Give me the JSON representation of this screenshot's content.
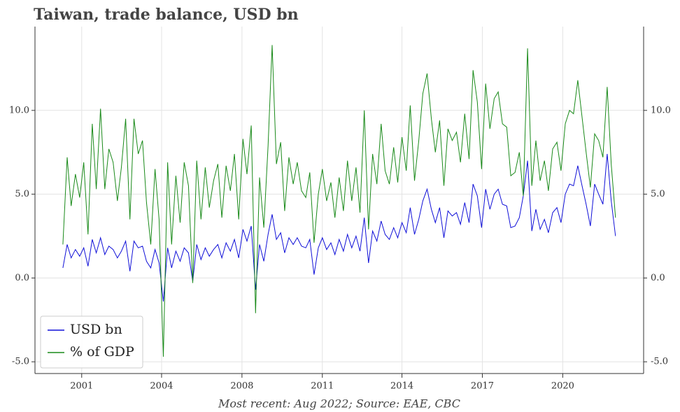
{
  "chart_data": {
    "type": "line",
    "title": "Taiwan, trade balance, USD bn",
    "footnote": "Most recent: Aug 2022; Source: EAE, CBC",
    "x": [
      2000.5,
      2000.67,
      2000.83,
      2001,
      2001.17,
      2001.33,
      2001.5,
      2001.67,
      2001.83,
      2002,
      2002.17,
      2002.33,
      2002.5,
      2002.67,
      2002.83,
      2003,
      2003.17,
      2003.33,
      2003.5,
      2003.67,
      2003.83,
      2004,
      2004.17,
      2004.33,
      2004.5,
      2004.67,
      2004.83,
      2005,
      2005.17,
      2005.33,
      2005.5,
      2005.67,
      2005.83,
      2006,
      2006.17,
      2006.33,
      2006.5,
      2006.67,
      2006.83,
      2007,
      2007.17,
      2007.33,
      2007.5,
      2007.67,
      2007.83,
      2008,
      2008.17,
      2008.33,
      2008.5,
      2008.67,
      2008.83,
      2009,
      2009.17,
      2009.33,
      2009.5,
      2009.67,
      2009.83,
      2010,
      2010.17,
      2010.33,
      2010.5,
      2010.67,
      2010.83,
      2011,
      2011.17,
      2011.33,
      2011.5,
      2011.67,
      2011.83,
      2012,
      2012.17,
      2012.33,
      2012.5,
      2012.67,
      2012.83,
      2013,
      2013.17,
      2013.33,
      2013.5,
      2013.67,
      2013.83,
      2014,
      2014.17,
      2014.33,
      2014.5,
      2014.67,
      2014.83,
      2015,
      2015.17,
      2015.33,
      2015.5,
      2015.67,
      2015.83,
      2016,
      2016.17,
      2016.33,
      2016.5,
      2016.67,
      2016.83,
      2017,
      2017.17,
      2017.33,
      2017.5,
      2017.67,
      2017.83,
      2018,
      2018.17,
      2018.33,
      2018.5,
      2018.67,
      2018.83,
      2019,
      2019.17,
      2019.33,
      2019.5,
      2019.67,
      2019.83,
      2020,
      2020.17,
      2020.33,
      2020.5,
      2020.67,
      2020.83,
      2021,
      2021.17,
      2021.33,
      2021.5,
      2021.67,
      2021.83,
      2022,
      2022.17,
      2022.33,
      2022.5
    ],
    "series": [
      {
        "name": "USD bn",
        "color": "#1010d8",
        "values": [
          0.6,
          2.0,
          1.2,
          1.7,
          1.3,
          1.8,
          0.7,
          2.3,
          1.5,
          2.4,
          1.4,
          1.9,
          1.7,
          1.2,
          1.6,
          2.2,
          0.4,
          2.2,
          1.8,
          1.9,
          1.0,
          0.6,
          1.7,
          0.9,
          -1.4,
          1.8,
          0.6,
          1.6,
          1.0,
          1.8,
          1.5,
          -0.2,
          2.0,
          1.1,
          1.8,
          1.3,
          1.7,
          2.0,
          1.2,
          2.1,
          1.6,
          2.3,
          1.2,
          2.9,
          2.2,
          3.1,
          -0.7,
          2.0,
          1.0,
          2.6,
          3.8,
          2.3,
          2.7,
          1.5,
          2.4,
          2.0,
          2.4,
          1.9,
          1.8,
          2.3,
          0.2,
          1.8,
          2.4,
          1.7,
          2.1,
          1.4,
          2.3,
          1.6,
          2.6,
          1.8,
          2.5,
          1.6,
          3.6,
          0.9,
          2.8,
          2.2,
          3.4,
          2.6,
          2.3,
          3.0,
          2.4,
          3.3,
          2.7,
          4.2,
          2.6,
          3.5,
          4.6,
          5.3,
          4.1,
          3.3,
          4.2,
          2.4,
          4.0,
          3.7,
          3.9,
          3.2,
          4.5,
          3.3,
          5.6,
          4.9,
          3.0,
          5.3,
          4.1,
          5.0,
          5.3,
          4.4,
          4.3,
          3.0,
          3.1,
          3.6,
          4.9,
          7.0,
          2.8,
          4.1,
          2.9,
          3.5,
          2.7,
          3.9,
          4.2,
          3.3,
          5.0,
          5.6,
          5.5,
          6.7,
          5.5,
          4.4,
          3.1,
          5.6,
          5.0,
          4.4,
          7.4,
          4.6,
          2.5
        ]
      },
      {
        "name": "% of GDP",
        "color": "#1a8a1a",
        "axis": "y2",
        "values": [
          2.0,
          7.2,
          4.3,
          6.2,
          4.8,
          6.9,
          2.6,
          9.2,
          5.3,
          10.1,
          5.3,
          7.7,
          6.9,
          4.6,
          6.6,
          9.5,
          3.5,
          9.5,
          7.4,
          8.2,
          4.5,
          2.0,
          6.5,
          3.5,
          -4.7,
          6.9,
          2.0,
          6.1,
          3.3,
          6.9,
          5.5,
          -0.3,
          7.0,
          3.5,
          6.6,
          4.2,
          5.8,
          6.8,
          3.6,
          6.7,
          5.2,
          7.4,
          3.5,
          8.3,
          6.2,
          9.1,
          -2.1,
          6.0,
          3.0,
          7.9,
          13.9,
          6.8,
          8.1,
          4.0,
          7.2,
          5.6,
          6.9,
          5.2,
          4.8,
          6.3,
          2.1,
          5.0,
          6.5,
          4.6,
          5.7,
          3.6,
          6.0,
          4.0,
          7.0,
          4.6,
          6.6,
          3.9,
          10.0,
          2.9,
          7.4,
          5.6,
          9.2,
          6.4,
          5.6,
          7.8,
          5.7,
          8.4,
          6.4,
          10.3,
          5.8,
          8.2,
          11.0,
          12.2,
          9.5,
          7.5,
          9.4,
          5.5,
          8.9,
          8.2,
          8.7,
          6.9,
          9.8,
          7.1,
          12.4,
          10.5,
          6.5,
          11.6,
          8.9,
          10.7,
          11.1,
          9.2,
          9.0,
          6.1,
          6.3,
          7.5,
          4.9,
          13.7,
          5.5,
          8.2,
          5.8,
          7.0,
          5.2,
          7.7,
          8.1,
          6.4,
          9.2,
          10.0,
          9.8,
          11.8,
          9.6,
          7.5,
          5.4,
          8.6,
          8.2,
          7.2,
          11.4,
          6.8,
          3.6
        ]
      }
    ],
    "xlim": [
      1999.39,
      2023.62
    ],
    "xticks": [
      {
        "value": 2001.25,
        "label": "2001"
      },
      {
        "value": 2004.43,
        "label": "2004"
      },
      {
        "value": 2007.63,
        "label": "2008"
      },
      {
        "value": 2010.83,
        "label": "2011"
      },
      {
        "value": 2014.0,
        "label": "2014"
      },
      {
        "value": 2017.2,
        "label": "2017"
      },
      {
        "value": 2020.4,
        "label": "2020"
      }
    ],
    "ylim": [
      -5.7,
      15
    ],
    "yticks": [
      {
        "value": -5,
        "label": "-5.0"
      },
      {
        "value": 0,
        "label": "0.0"
      },
      {
        "value": 5,
        "label": "5.0"
      },
      {
        "value": 10,
        "label": "10.0"
      }
    ],
    "y2lim": [
      -5.7,
      15
    ],
    "y2ticks": [
      {
        "value": -5,
        "label": "-5.0"
      },
      {
        "value": 0,
        "label": "0.0"
      },
      {
        "value": 5,
        "label": "5.0"
      },
      {
        "value": 10,
        "label": "10.0"
      }
    ],
    "grid": true,
    "legend": "lower left"
  }
}
